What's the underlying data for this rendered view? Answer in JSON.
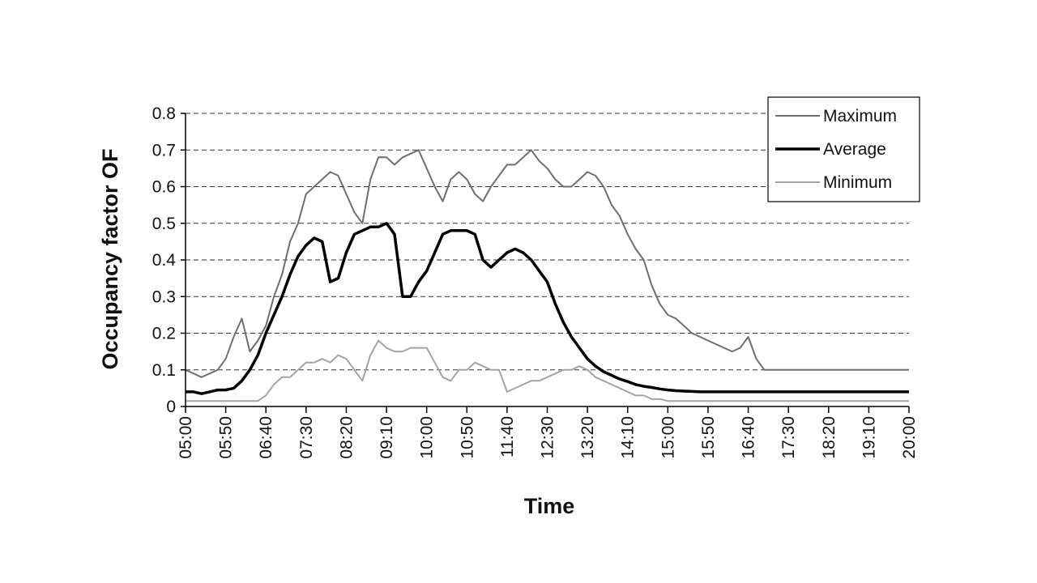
{
  "chart_data": {
    "type": "line",
    "title": "",
    "xlabel": "Time",
    "ylabel": "Occupancy factor OF",
    "ylim": [
      0,
      0.8
    ],
    "yticks": [
      "0",
      "0.1",
      "0.2",
      "0.3",
      "0.4",
      "0.5",
      "0.6",
      "0.7",
      "0.8"
    ],
    "x": [
      "05:00",
      "05:10",
      "05:20",
      "05:30",
      "05:40",
      "05:50",
      "06:00",
      "06:10",
      "06:20",
      "06:30",
      "06:40",
      "06:50",
      "07:00",
      "07:10",
      "07:20",
      "07:30",
      "07:40",
      "07:50",
      "08:00",
      "08:10",
      "08:20",
      "08:30",
      "08:40",
      "08:50",
      "09:00",
      "09:10",
      "09:20",
      "09:30",
      "09:40",
      "09:50",
      "10:00",
      "10:10",
      "10:20",
      "10:30",
      "10:40",
      "10:50",
      "11:00",
      "11:10",
      "11:20",
      "11:30",
      "11:40",
      "11:50",
      "12:00",
      "12:10",
      "12:20",
      "12:30",
      "12:40",
      "12:50",
      "13:00",
      "13:10",
      "13:20",
      "13:30",
      "13:40",
      "13:50",
      "14:00",
      "14:10",
      "14:20",
      "14:30",
      "14:40",
      "14:50",
      "15:00",
      "15:10",
      "15:20",
      "15:30",
      "15:40",
      "15:50",
      "16:00",
      "16:10",
      "16:20",
      "16:30",
      "16:40",
      "16:50",
      "17:00",
      "17:10",
      "17:20",
      "17:30",
      "17:40",
      "17:50",
      "18:00",
      "18:10",
      "18:20",
      "18:30",
      "18:40",
      "18:50",
      "19:00",
      "19:10",
      "19:20",
      "19:30",
      "19:40",
      "19:50",
      "20:00"
    ],
    "xticks": [
      "05:00",
      "05:50",
      "06:40",
      "07:30",
      "08:20",
      "09:10",
      "10:00",
      "10:50",
      "11:40",
      "12:30",
      "13:20",
      "14:10",
      "15:00",
      "15:50",
      "16:40",
      "17:30",
      "18:20",
      "19:10",
      "20:00"
    ],
    "series": [
      {
        "name": "Maximum",
        "color": "#6e6e6e",
        "width": 2,
        "values": [
          0.1,
          0.09,
          0.08,
          0.09,
          0.1,
          0.13,
          0.19,
          0.24,
          0.15,
          0.18,
          0.22,
          0.3,
          0.36,
          0.45,
          0.5,
          0.58,
          0.6,
          0.62,
          0.64,
          0.63,
          0.58,
          0.53,
          0.5,
          0.62,
          0.68,
          0.68,
          0.66,
          0.68,
          0.69,
          0.7,
          0.65,
          0.6,
          0.56,
          0.62,
          0.64,
          0.62,
          0.58,
          0.56,
          0.6,
          0.63,
          0.66,
          0.66,
          0.68,
          0.7,
          0.67,
          0.65,
          0.62,
          0.6,
          0.6,
          0.62,
          0.64,
          0.63,
          0.6,
          0.55,
          0.52,
          0.47,
          0.43,
          0.4,
          0.33,
          0.28,
          0.25,
          0.24,
          0.22,
          0.2,
          0.19,
          0.18,
          0.17,
          0.16,
          0.15,
          0.16,
          0.19,
          0.13,
          0.1,
          0.1,
          0.1,
          0.1,
          0.1,
          0.1,
          0.1,
          0.1,
          0.1,
          0.1,
          0.1,
          0.1,
          0.1,
          0.1,
          0.1,
          0.1,
          0.1,
          0.1,
          0.1
        ]
      },
      {
        "name": "Average",
        "color": "#000000",
        "width": 3.5,
        "values": [
          0.04,
          0.04,
          0.035,
          0.04,
          0.045,
          0.045,
          0.05,
          0.07,
          0.1,
          0.14,
          0.2,
          0.25,
          0.3,
          0.36,
          0.41,
          0.44,
          0.46,
          0.45,
          0.34,
          0.35,
          0.42,
          0.47,
          0.48,
          0.49,
          0.49,
          0.5,
          0.47,
          0.3,
          0.3,
          0.34,
          0.37,
          0.42,
          0.47,
          0.48,
          0.48,
          0.48,
          0.47,
          0.4,
          0.38,
          0.4,
          0.42,
          0.43,
          0.42,
          0.4,
          0.37,
          0.34,
          0.28,
          0.23,
          0.19,
          0.16,
          0.13,
          0.11,
          0.095,
          0.085,
          0.075,
          0.068,
          0.06,
          0.055,
          0.052,
          0.048,
          0.045,
          0.043,
          0.042,
          0.041,
          0.04,
          0.04,
          0.04,
          0.04,
          0.04,
          0.04,
          0.04,
          0.04,
          0.04,
          0.04,
          0.04,
          0.04,
          0.04,
          0.04,
          0.04,
          0.04,
          0.04,
          0.04,
          0.04,
          0.04,
          0.04,
          0.04,
          0.04,
          0.04,
          0.04,
          0.04,
          0.04
        ]
      },
      {
        "name": "Minimum",
        "color": "#a3a3a3",
        "width": 2,
        "values": [
          0.015,
          0.015,
          0.015,
          0.015,
          0.015,
          0.015,
          0.015,
          0.015,
          0.015,
          0.015,
          0.03,
          0.06,
          0.08,
          0.08,
          0.1,
          0.12,
          0.12,
          0.13,
          0.12,
          0.14,
          0.13,
          0.1,
          0.07,
          0.14,
          0.18,
          0.16,
          0.15,
          0.15,
          0.16,
          0.16,
          0.16,
          0.12,
          0.08,
          0.07,
          0.1,
          0.1,
          0.12,
          0.11,
          0.1,
          0.1,
          0.04,
          0.05,
          0.06,
          0.07,
          0.07,
          0.08,
          0.09,
          0.1,
          0.1,
          0.11,
          0.1,
          0.08,
          0.07,
          0.06,
          0.05,
          0.04,
          0.03,
          0.03,
          0.02,
          0.02,
          0.015,
          0.015,
          0.015,
          0.015,
          0.015,
          0.015,
          0.015,
          0.015,
          0.015,
          0.015,
          0.015,
          0.015,
          0.015,
          0.015,
          0.015,
          0.015,
          0.015,
          0.015,
          0.015,
          0.015,
          0.015,
          0.015,
          0.015,
          0.015,
          0.015,
          0.015,
          0.015,
          0.015,
          0.015,
          0.015,
          0.015
        ]
      }
    ],
    "legend": {
      "position": "top-right",
      "entries": [
        "Maximum",
        "Average",
        "Minimum"
      ]
    },
    "grid": {
      "y": "dashed",
      "x": false
    },
    "colors": {
      "axis": "#000000",
      "grid": "#333333"
    }
  }
}
